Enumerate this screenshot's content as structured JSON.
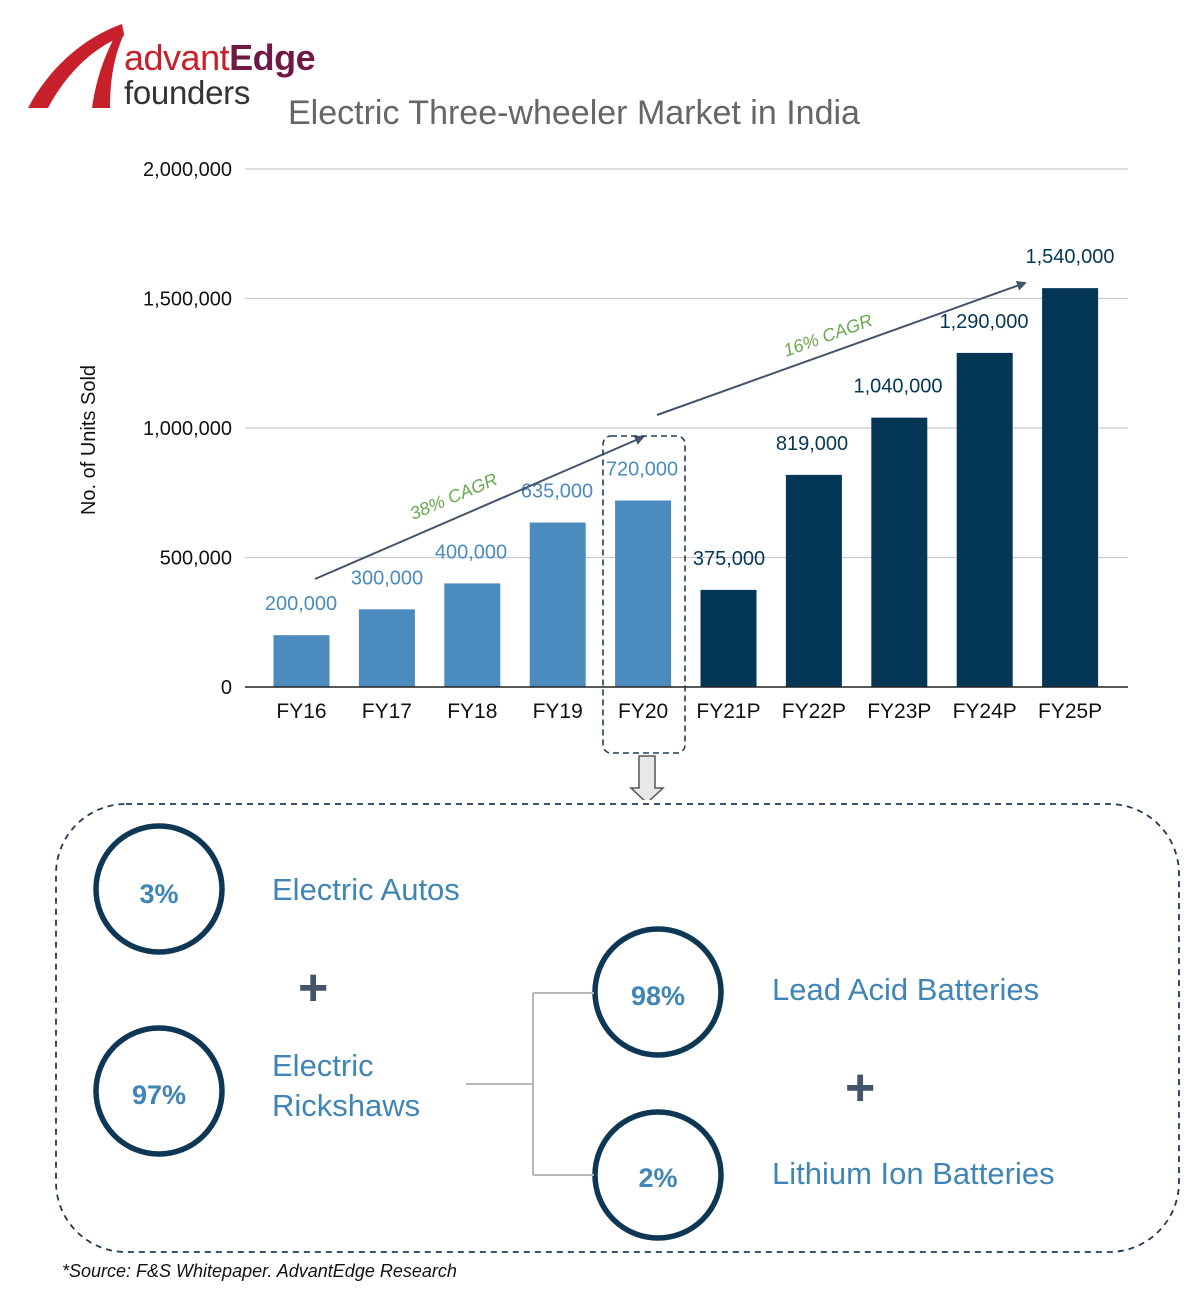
{
  "logo": {
    "text_part1": "advant",
    "text_part2": "Edge",
    "text_line2": "founders"
  },
  "title": "Electric Three-wheeler Market in India",
  "chart_data": {
    "type": "bar",
    "title": "Electric Three-wheeler Market in India",
    "xlabel": "",
    "ylabel": "No. of Units Sold",
    "ylim": [
      0,
      2000000
    ],
    "y_ticks": [
      "0",
      "500,000",
      "1,000,000",
      "1,500,000",
      "2,000,000"
    ],
    "y_tick_values": [
      0,
      500000,
      1000000,
      1500000,
      2000000
    ],
    "grid": true,
    "categories": [
      "FY16",
      "FY17",
      "FY18",
      "FY19",
      "FY20",
      "FY21P",
      "FY22P",
      "FY23P",
      "FY24P",
      "FY25P"
    ],
    "values": [
      200000,
      300000,
      400000,
      635000,
      720000,
      375000,
      819000,
      1040000,
      1290000,
      1540000
    ],
    "value_labels": [
      "200,000",
      "300,000",
      "400,000",
      "635,000",
      "720,000",
      "375,000",
      "819,000",
      "1,040,000",
      "1,290,000",
      "1,540,000"
    ],
    "bar_colors": [
      "#4b8bbe",
      "#4b8bbe",
      "#4b8bbe",
      "#4b8bbe",
      "#4b8bbe",
      "#043756",
      "#043756",
      "#043756",
      "#043756",
      "#043756"
    ],
    "label_colors": [
      "#4b8bbe",
      "#4b8bbe",
      "#4b8bbe",
      "#4b8bbe",
      "#4b8bbe",
      "#043756",
      "#043756",
      "#043756",
      "#043756",
      "#043756"
    ],
    "annotations": [
      {
        "text": "38% CAGR",
        "color": "#6aa84f"
      },
      {
        "text": "16% CAGR",
        "color": "#6aa84f"
      }
    ],
    "highlighted_category": "FY20"
  },
  "breakdown": {
    "autos": {
      "percent": "3%",
      "label": "Electric Autos"
    },
    "rickshaws": {
      "percent": "97%",
      "label_line1": "Electric",
      "label_line2": "Rickshaws"
    },
    "lead_acid": {
      "percent": "98%",
      "label": "Lead Acid Batteries"
    },
    "lithium": {
      "percent": "2%",
      "label": "Lithium Ion Batteries"
    },
    "plus": "+"
  },
  "colors": {
    "circle_stroke": "#0d3755",
    "accent_text": "#3f85b5",
    "plus": "#44546a",
    "dashed_box": "#1f3b57"
  },
  "source": "*Source: F&S Whitepaper. AdvantEdge Research"
}
